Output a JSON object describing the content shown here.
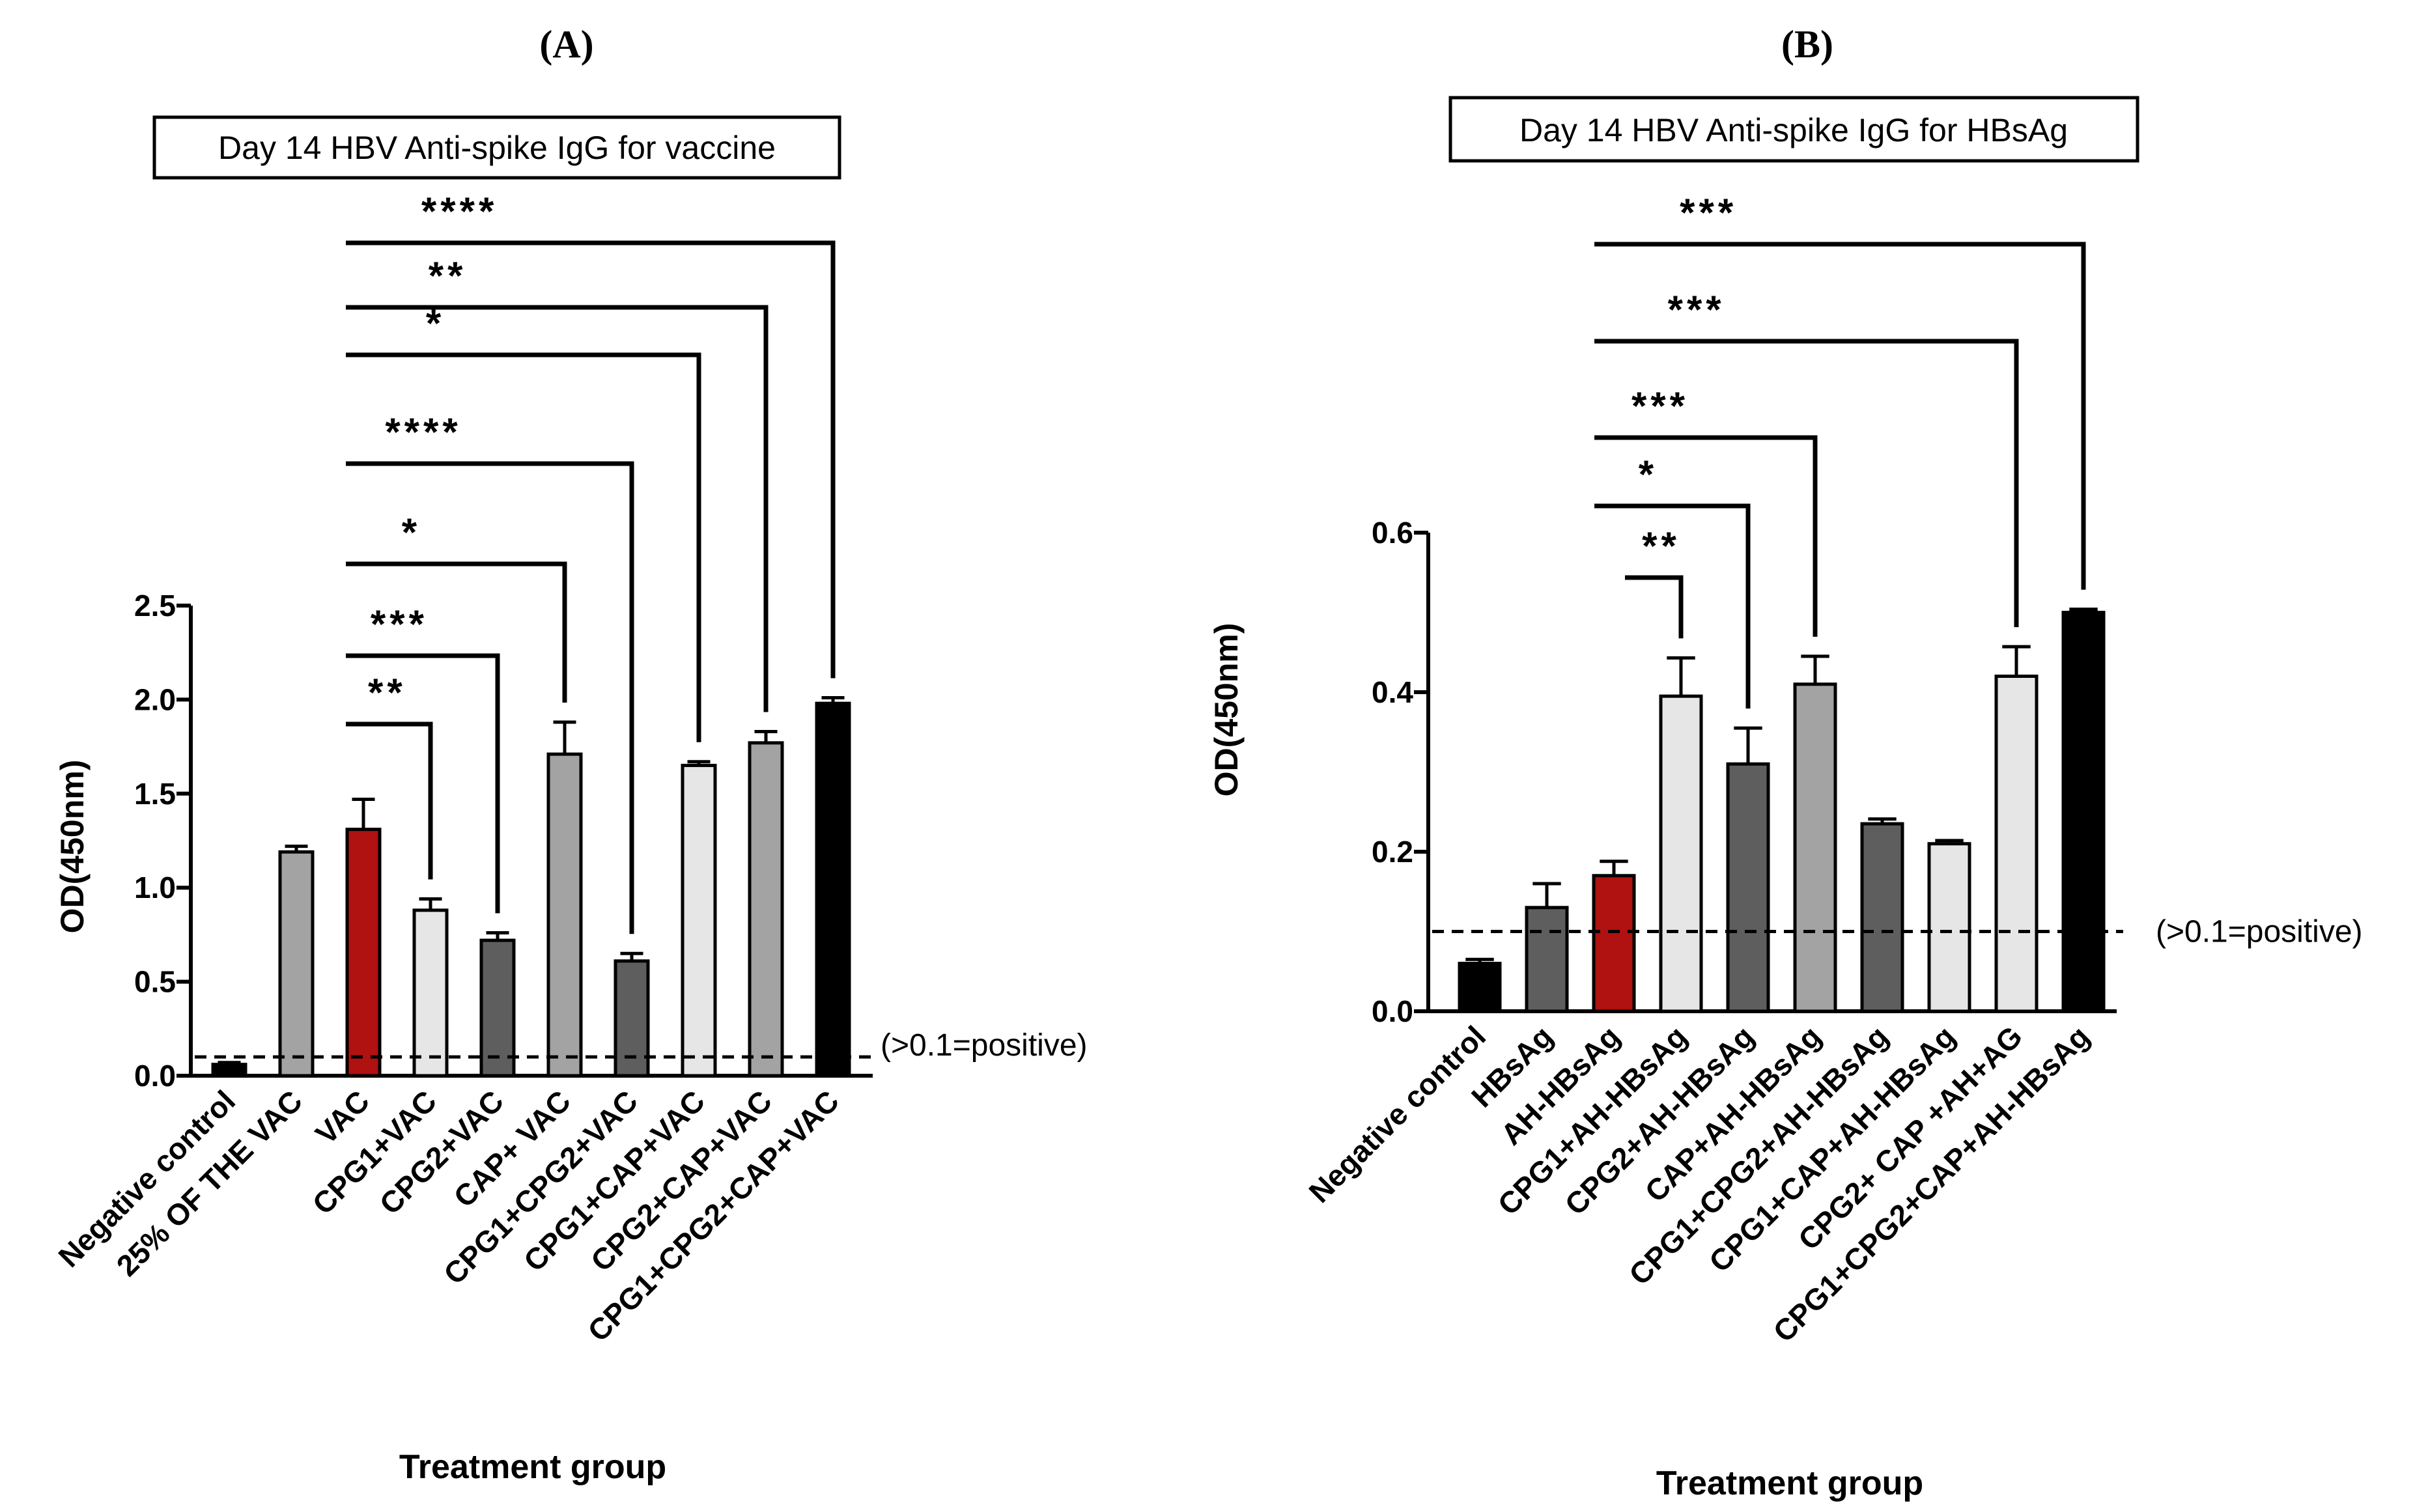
{
  "colors": {
    "black": "#000000",
    "red": "#b01111",
    "light_gray": "#e6e6e6",
    "mid_gray": "#a3a3a3",
    "dark_gray": "#5e5e5e"
  },
  "chart_data": [
    {
      "panel_label": "(A)",
      "type": "bar",
      "title": "Day 14 HBV Anti-spike IgG for vaccine",
      "xlabel": "Treatment group",
      "ylabel": "OD(450nm)",
      "ylim": [
        0,
        2.5
      ],
      "yticks": [
        0.0,
        0.5,
        1.0,
        1.5,
        2.0,
        2.5
      ],
      "ytick_labels": [
        "0.0",
        "0.5",
        "1.0",
        "1.5",
        "2.0",
        "2.5"
      ],
      "threshold": {
        "value": 0.1,
        "label": "(>0.1=positive)"
      },
      "categories": [
        "Negative control",
        "25% OF THE VAC",
        "VAC",
        "CPG1+VAC",
        "CPG2+VAC",
        "CAP+ VAC",
        "CPG1+CPG2+VAC",
        "CPG1+CAP+VAC",
        "CPG2+CAP+VAC",
        "CPG1+CPG2+CAP+VAC"
      ],
      "values": [
        0.06,
        1.19,
        1.31,
        0.88,
        0.72,
        1.71,
        0.61,
        1.65,
        1.77,
        1.98
      ],
      "errors": [
        0.01,
        0.03,
        0.16,
        0.06,
        0.04,
        0.17,
        0.04,
        0.02,
        0.06,
        0.03
      ],
      "fills": [
        "black",
        "mid_gray",
        "red",
        "light_gray",
        "dark_gray",
        "mid_gray",
        "dark_gray",
        "light_gray",
        "mid_gray",
        "black"
      ],
      "comparisons": [
        {
          "from": 2,
          "to": 3,
          "label": "**"
        },
        {
          "from": 2,
          "to": 4,
          "label": "***"
        },
        {
          "from": 2,
          "to": 5,
          "label": "*"
        },
        {
          "from": 2,
          "to": 6,
          "label": "****"
        },
        {
          "from": 2,
          "to": 7,
          "label": "*"
        },
        {
          "from": 2,
          "to": 8,
          "label": "**"
        },
        {
          "from": 2,
          "to": 9,
          "label": "****"
        }
      ]
    },
    {
      "panel_label": "(B)",
      "type": "bar",
      "title": "Day 14 HBV Anti-spike IgG for HBsAg",
      "xlabel": "Treatment group",
      "ylabel": "OD(450nm)",
      "ylim": [
        0,
        0.6
      ],
      "yticks": [
        0.0,
        0.2,
        0.4,
        0.6
      ],
      "ytick_labels": [
        "0.0",
        "0.2",
        "0.4",
        "0.6"
      ],
      "threshold": {
        "value": 0.1,
        "label": "(>0.1=positive)"
      },
      "categories": [
        "Negative control",
        "HBsAg",
        "AH-HBsAg",
        "CPG1+AH-HBsAg",
        "CPG2+AH-HBsAg",
        "CAP+AH-HBsAg",
        "CPG1+CPG2+AH-HBsAg",
        "CPG1+CAP+AH-HBsAg",
        "CPG2+ CAP +AH+AG",
        "CPG1+CPG2+CAP+AH-HBsAg"
      ],
      "values": [
        0.06,
        0.13,
        0.17,
        0.395,
        0.31,
        0.41,
        0.235,
        0.21,
        0.42,
        0.5
      ],
      "errors": [
        0.005,
        0.03,
        0.018,
        0.048,
        0.045,
        0.035,
        0.006,
        0.004,
        0.037,
        0.004
      ],
      "fills": [
        "black",
        "dark_gray",
        "red",
        "light_gray",
        "dark_gray",
        "mid_gray",
        "dark_gray",
        "light_gray",
        "light_gray",
        "black"
      ],
      "comparisons": [
        {
          "from": 2,
          "to": 3,
          "label": "**"
        },
        {
          "from": 2,
          "to": 4,
          "label": "*"
        },
        {
          "from": 2,
          "to": 5,
          "label": "***"
        },
        {
          "from": 2,
          "to": 8,
          "label": "***"
        },
        {
          "from": 2,
          "to": 9,
          "label": "***"
        }
      ]
    }
  ]
}
